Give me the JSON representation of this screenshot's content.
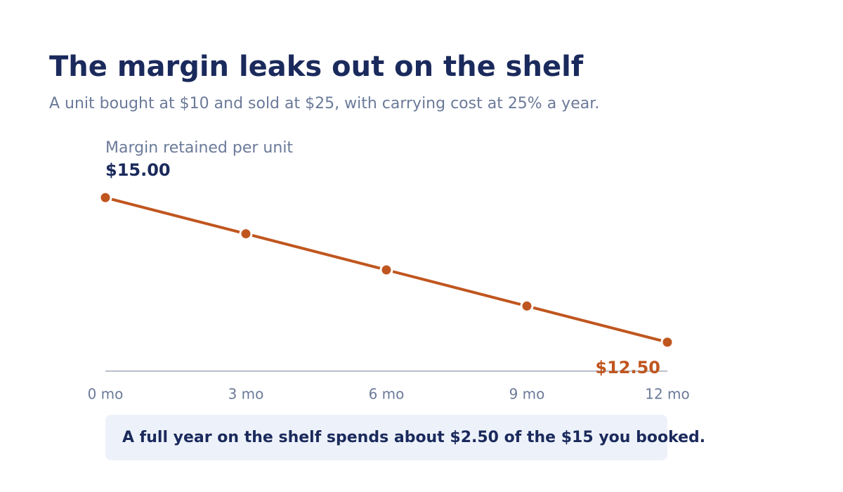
{
  "chart_data": {
    "type": "line",
    "title": "The margin leaks out on the shelf",
    "subtitle": "A unit bought at $10 and sold at $25, with carrying cost at 25% a year.",
    "y_label": "Margin retained per unit",
    "categories": [
      "0 mo",
      "3 mo",
      "6 mo",
      "9 mo",
      "12 mo"
    ],
    "values": [
      15,
      14.375,
      13.75,
      13.125,
      12.5
    ],
    "value_labels": [
      "$15.00",
      null,
      null,
      null,
      "$12.50"
    ],
    "color": "#c0561f",
    "ylim": [
      12,
      15.5
    ],
    "callout": "A full year on the shelf spends about $2.50 of the $15 you booked."
  }
}
